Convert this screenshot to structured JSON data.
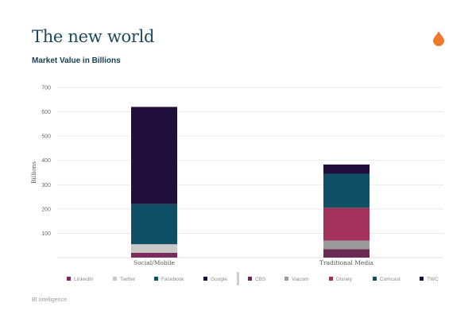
{
  "header": {
    "title": "The new world",
    "subtitle": "Market Value in Billions"
  },
  "footer": {
    "source": "BI Intelligence"
  },
  "icons": {
    "brand": "drop-icon"
  },
  "colors": {
    "title": "#1d4a5a",
    "subtitle": "#123d52",
    "brand_drop": "#f07930"
  },
  "chart_data": {
    "type": "bar",
    "stacked": true,
    "title": "",
    "xlabel": "",
    "ylabel": "Billions",
    "ylim": [
      0,
      700
    ],
    "yticks": [
      100,
      200,
      300,
      400,
      500,
      600,
      700
    ],
    "grid": true,
    "legend_position": "bottom",
    "categories": [
      "Social/Mobile",
      "Traditional Media"
    ],
    "series": [
      {
        "name": "LinkedIn",
        "color": "#7a2c5c",
        "values": [
          20,
          0
        ]
      },
      {
        "name": "Twitter",
        "color": "#c9c9c9",
        "values": [
          35,
          0
        ]
      },
      {
        "name": "Facebook",
        "color": "#0f5066",
        "values": [
          165,
          0
        ]
      },
      {
        "name": "Google",
        "color": "#1f0f3a",
        "values": [
          400,
          0
        ]
      },
      {
        "name": "CBS",
        "color": "#6b2a56",
        "values": [
          0,
          35
        ]
      },
      {
        "name": "Viacom",
        "color": "#9b9b9b",
        "values": [
          0,
          35
        ]
      },
      {
        "name": "Disney",
        "color": "#a3325a",
        "values": [
          0,
          135
        ]
      },
      {
        "name": "Comcast",
        "color": "#0f5066",
        "values": [
          0,
          140
        ]
      },
      {
        "name": "TWC",
        "color": "#1f0f3a",
        "values": [
          0,
          38
        ]
      }
    ]
  }
}
